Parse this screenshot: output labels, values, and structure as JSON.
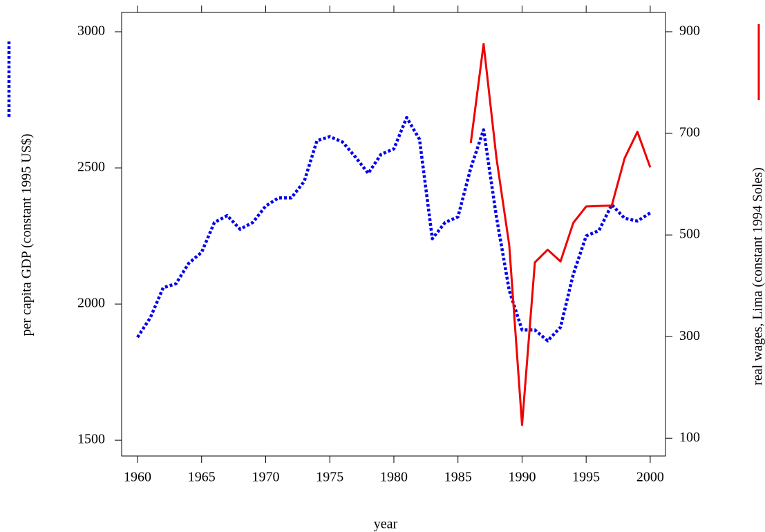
{
  "chart_data": {
    "type": "line",
    "xlabel": "year",
    "xlim": [
      1958.76,
      2001.19
    ],
    "xticks": [
      1960,
      1965,
      1970,
      1975,
      1980,
      1985,
      1990,
      1995,
      2000
    ],
    "ylim": [
      1442,
      3071
    ],
    "yticks": [
      1500,
      2000,
      2500,
      3000
    ],
    "y2lim": [
      65,
      938
    ],
    "y2ticks": [
      100,
      300,
      500,
      700,
      900
    ],
    "series": [
      {
        "name": "per capita GDP (constant 1995 US$)",
        "color": "#0000ee",
        "dashed": true,
        "x": [
          1960,
          1961,
          1962,
          1963,
          1964,
          1965,
          1966,
          1967,
          1968,
          1969,
          1970,
          1971,
          1972,
          1973,
          1974,
          1975,
          1976,
          1977,
          1978,
          1979,
          1980,
          1981,
          1982,
          1983,
          1984,
          1985,
          1986,
          1987,
          1988,
          1989,
          1990,
          1991,
          1992,
          1993,
          1994,
          1995,
          1996,
          1997,
          1998,
          1999,
          2000
        ],
        "values": [
          1878,
          1950,
          2060,
          2075,
          2150,
          2190,
          2300,
          2325,
          2275,
          2300,
          2360,
          2390,
          2390,
          2450,
          2600,
          2615,
          2595,
          2540,
          2480,
          2550,
          2570,
          2685,
          2605,
          2240,
          2300,
          2320,
          2500,
          2640,
          2320,
          2050,
          1905,
          1905,
          1865,
          1915,
          2110,
          2250,
          2270,
          2365,
          2315,
          2305,
          2335
        ]
      },
      {
        "name": "real wages, Lima (constant 1994 Soles)",
        "color": "#ee0000",
        "axis": "y2",
        "x": [
          1986,
          1987,
          1988,
          1989,
          1990,
          1991,
          1992,
          1993,
          1994,
          1995,
          1996,
          1997,
          1998,
          1999,
          2000
        ],
        "values": [
          681,
          876,
          652,
          480,
          126,
          446,
          471,
          448,
          524,
          556,
          557,
          558,
          651,
          703,
          633
        ]
      }
    ]
  }
}
